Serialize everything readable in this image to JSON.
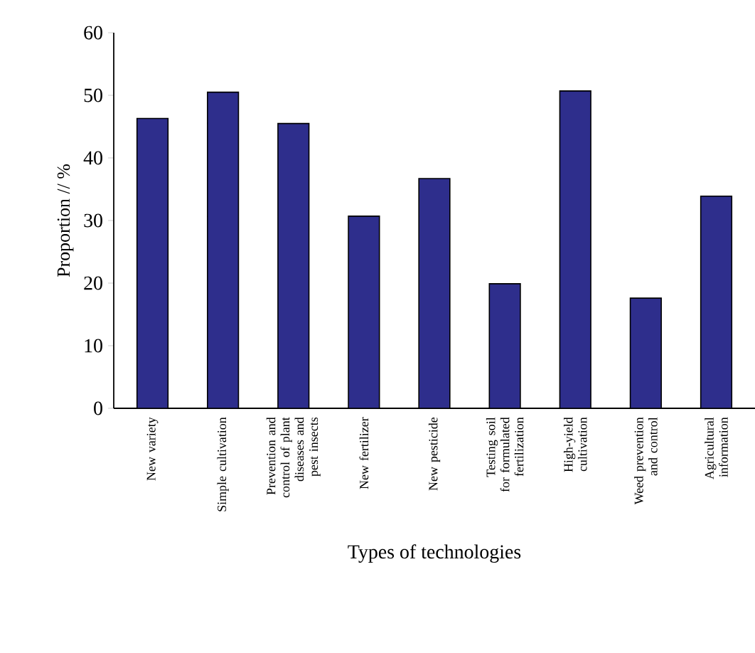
{
  "chart_data": {
    "type": "bar",
    "xlabel": "Types of technologies",
    "ylabel": "Proportion // %",
    "categories": [
      "New variety",
      "Simple cultivation",
      "Prevention and control of plant diseases and pest insects",
      "New fertilizer",
      "New pesticide",
      "Testing soil for formulated fertilization",
      "High-yield cultivation",
      "Weed prevention and control",
      "Agricultural information"
    ],
    "values": [
      46.3,
      50.5,
      45.5,
      30.7,
      36.7,
      19.9,
      50.7,
      17.6,
      33.9
    ],
    "color": "#2e2e8c",
    "ylim": [
      0,
      60
    ],
    "yticks": [
      0,
      10,
      20,
      30,
      40,
      50,
      60
    ],
    "grid": false
  }
}
